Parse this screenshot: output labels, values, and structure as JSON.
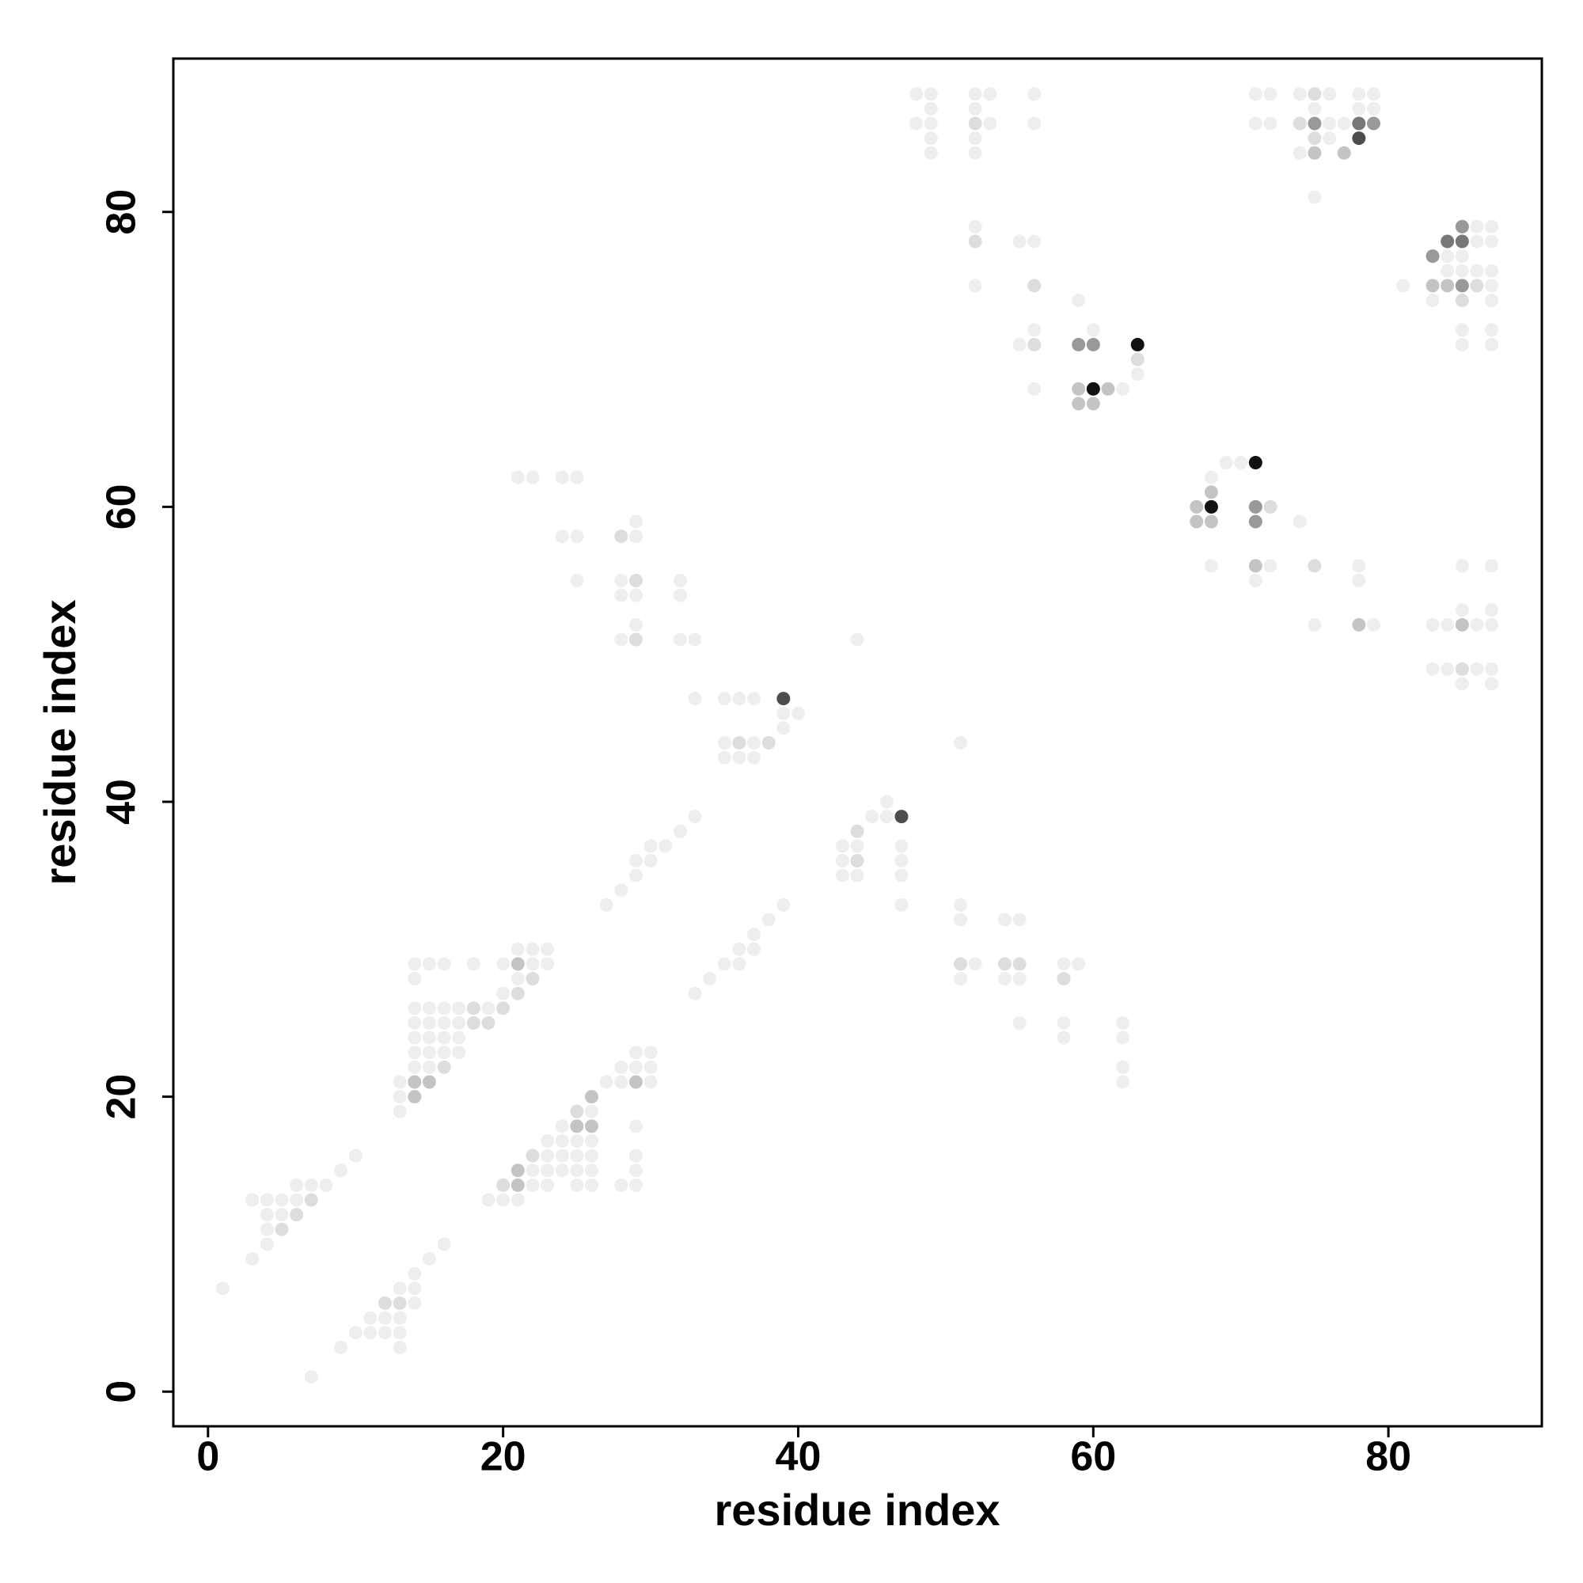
{
  "chart_data": {
    "type": "scatter",
    "x_label": "residue index",
    "y_label": "residue index",
    "xlim": [
      -2.35,
      90.4
    ],
    "ylim": [
      -2.35,
      90.4
    ],
    "xticks": [
      0,
      20,
      40,
      60,
      80
    ],
    "yticks": [
      0,
      20,
      40,
      60,
      80
    ],
    "x": [
      1,
      7,
      3,
      3,
      4,
      4,
      4,
      4,
      5,
      5,
      5,
      6,
      6,
      6,
      7,
      7,
      8,
      9,
      10,
      9,
      10,
      11,
      11,
      12,
      12,
      12,
      13,
      13,
      13,
      13,
      13,
      14,
      14,
      14,
      15,
      16,
      13,
      13,
      13,
      14,
      14,
      14,
      14,
      14,
      14,
      14,
      14,
      14,
      15,
      15,
      15,
      15,
      15,
      15,
      15,
      16,
      16,
      16,
      16,
      16,
      16,
      17,
      17,
      17,
      17,
      18,
      18,
      18,
      19,
      19,
      20,
      20,
      20,
      21,
      21,
      21,
      21,
      22,
      22,
      22,
      23,
      23,
      19,
      20,
      20,
      21,
      21,
      21,
      22,
      22,
      22,
      23,
      23,
      23,
      23,
      24,
      24,
      24,
      24,
      25,
      25,
      25,
      25,
      25,
      25,
      26,
      26,
      26,
      26,
      26,
      26,
      26,
      27,
      28,
      28,
      28,
      29,
      29,
      29,
      29,
      29,
      29,
      29,
      30,
      30,
      30,
      27,
      28,
      29,
      29,
      30,
      30,
      31,
      32,
      33,
      33,
      34,
      35,
      36,
      36,
      37,
      37,
      38,
      39,
      21,
      22,
      24,
      25,
      24,
      25,
      25,
      28,
      29,
      29,
      28,
      29,
      28,
      29,
      29,
      28,
      29,
      32,
      32,
      32,
      33,
      33,
      35,
      36,
      37,
      39,
      35,
      36,
      37,
      38,
      35,
      36,
      37,
      39,
      39,
      40,
      43,
      43,
      43,
      44,
      44,
      44,
      44,
      45,
      46,
      46,
      47,
      47,
      47,
      47,
      47,
      44,
      51,
      51,
      51,
      51,
      51,
      52,
      54,
      55,
      54,
      55,
      54,
      55,
      55,
      58,
      59,
      58,
      58,
      58,
      62,
      62,
      62,
      62,
      48,
      49,
      49,
      48,
      49,
      49,
      49,
      52,
      53,
      52,
      52,
      53,
      52,
      52,
      56,
      56,
      52,
      52,
      52,
      55,
      56,
      56,
      56,
      55,
      56,
      56,
      59,
      59,
      60,
      60,
      59,
      60,
      61,
      62,
      59,
      60,
      63,
      63,
      63,
      67,
      68,
      67,
      68,
      68,
      68,
      69,
      70,
      71,
      71,
      72,
      71,
      68,
      71,
      72,
      71,
      74,
      75,
      75,
      78,
      78,
      78,
      79,
      71,
      72,
      71,
      72,
      74,
      75,
      76,
      75,
      74,
      75,
      76,
      77,
      75,
      76,
      74,
      75,
      75,
      77,
      78,
      79,
      78,
      78,
      79,
      78,
      79,
      81,
      83,
      84,
      85,
      85,
      86,
      87,
      85,
      84,
      86,
      87,
      84,
      85,
      86,
      87,
      83,
      84,
      85,
      86,
      87,
      83,
      85,
      87,
      85,
      87,
      85,
      87,
      85,
      87,
      85,
      87,
      83,
      84,
      85,
      86,
      87,
      83,
      84,
      85,
      86,
      87,
      85,
      87
    ],
    "values": [
      7,
      1,
      9,
      13,
      10,
      11,
      12,
      13,
      11,
      12,
      13,
      12,
      13,
      14,
      13,
      14,
      14,
      15,
      16,
      3,
      4,
      4,
      5,
      4,
      5,
      6,
      3,
      4,
      5,
      6,
      7,
      6,
      7,
      8,
      9,
      10,
      19,
      20,
      21,
      20,
      21,
      22,
      23,
      24,
      25,
      26,
      28,
      29,
      21,
      22,
      23,
      24,
      25,
      26,
      29,
      22,
      23,
      24,
      25,
      26,
      29,
      23,
      24,
      25,
      26,
      25,
      26,
      29,
      25,
      26,
      26,
      27,
      29,
      27,
      28,
      29,
      30,
      28,
      29,
      30,
      29,
      30,
      13,
      13,
      14,
      13,
      14,
      15,
      14,
      15,
      16,
      14,
      15,
      16,
      17,
      15,
      16,
      17,
      18,
      14,
      15,
      16,
      17,
      18,
      19,
      14,
      15,
      16,
      17,
      18,
      19,
      20,
      21,
      14,
      21,
      22,
      14,
      15,
      16,
      18,
      21,
      22,
      23,
      21,
      22,
      23,
      33,
      34,
      35,
      36,
      36,
      37,
      37,
      38,
      39,
      27,
      28,
      29,
      29,
      30,
      30,
      31,
      32,
      33,
      62,
      62,
      62,
      62,
      58,
      58,
      55,
      58,
      58,
      59,
      55,
      55,
      54,
      54,
      52,
      51,
      51,
      55,
      54,
      51,
      51,
      47,
      47,
      47,
      47,
      47,
      44,
      44,
      44,
      44,
      43,
      43,
      43,
      45,
      46,
      46,
      37,
      36,
      35,
      38,
      37,
      36,
      35,
      39,
      39,
      40,
      39,
      37,
      36,
      35,
      33,
      51,
      44,
      33,
      32,
      29,
      28,
      29,
      32,
      32,
      29,
      29,
      28,
      28,
      25,
      29,
      29,
      28,
      25,
      24,
      25,
      24,
      22,
      21,
      88,
      88,
      87,
      86,
      86,
      85,
      84,
      88,
      88,
      87,
      86,
      86,
      85,
      84,
      88,
      86,
      79,
      78,
      75,
      78,
      78,
      75,
      72,
      71,
      71,
      68,
      74,
      71,
      71,
      72,
      68,
      68,
      68,
      68,
      67,
      67,
      71,
      70,
      69,
      60,
      60,
      59,
      59,
      61,
      62,
      63,
      63,
      63,
      60,
      60,
      59,
      56,
      56,
      56,
      55,
      59,
      56,
      52,
      56,
      55,
      52,
      52,
      88,
      88,
      86,
      86,
      88,
      88,
      88,
      87,
      86,
      86,
      86,
      86,
      85,
      85,
      84,
      84,
      81,
      84,
      86,
      86,
      85,
      88,
      88,
      87,
      87,
      75,
      77,
      78,
      78,
      79,
      79,
      79,
      77,
      77,
      78,
      78,
      76,
      76,
      76,
      76,
      75,
      75,
      75,
      75,
      75,
      74,
      74,
      74,
      72,
      72,
      71,
      71,
      56,
      56,
      53,
      53,
      52,
      52,
      52,
      52,
      52,
      49,
      49,
      49,
      49,
      49,
      48,
      48
    ],
    "colors": [
      "#eee",
      "#eee",
      "#eee",
      "#eee",
      "#eee",
      "#eee",
      "#eee",
      "#eee",
      "#ddd",
      "#eee",
      "#eee",
      "#ddd",
      "#eee",
      "#eee",
      "#ddd",
      "#eee",
      "#eee",
      "#eee",
      "#eee",
      "#eee",
      "#eee",
      "#eee",
      "#eee",
      "#eee",
      "#eee",
      "#ddd",
      "#eee",
      "#eee",
      "#eee",
      "#ddd",
      "#eee",
      "#eee",
      "#eee",
      "#eee",
      "#eee",
      "#eee",
      "#eee",
      "#eee",
      "#eee",
      "#c4c4c4",
      "#c4c4c4",
      "#eee",
      "#eee",
      "#eee",
      "#eee",
      "#eee",
      "#eee",
      "#eee",
      "#c4c4c4",
      "#eee",
      "#eee",
      "#eee",
      "#eee",
      "#eee",
      "#eee",
      "#ddd",
      "#eee",
      "#eee",
      "#eee",
      "#eee",
      "#eee",
      "#eee",
      "#eee",
      "#eee",
      "#eee",
      "#ddd",
      "#ddd",
      "#eee",
      "#ddd",
      "#eee",
      "#ddd",
      "#eee",
      "#eee",
      "#ddd",
      "#eee",
      "#c4c4c4",
      "#eee",
      "#ddd",
      "#eee",
      "#eee",
      "#eee",
      "#eee",
      "#eee",
      "#eee",
      "#ddd",
      "#eee",
      "#c4c4c4",
      "#c4c4c4",
      "#eee",
      "#eee",
      "#ddd",
      "#eee",
      "#eee",
      "#eee",
      "#eee",
      "#eee",
      "#eee",
      "#eee",
      "#eee",
      "#eee",
      "#eee",
      "#eee",
      "#eee",
      "#c4c4c4",
      "#ddd",
      "#eee",
      "#eee",
      "#eee",
      "#eee",
      "#c4c4c4",
      "#eee",
      "#c4c4c4",
      "#eee",
      "#eee",
      "#eee",
      "#eee",
      "#eee",
      "#eee",
      "#eee",
      "#eee",
      "#c4c4c4",
      "#eee",
      "#eee",
      "#eee",
      "#eee",
      "#eee",
      "#eee",
      "#eee",
      "#eee",
      "#eee",
      "#eee",
      "#eee",
      "#eee",
      "#eee",
      "#eee",
      "#eee",
      "#eee",
      "#eee",
      "#eee",
      "#eee",
      "#eee",
      "#eee",
      "#eee",
      "#eee",
      "#eee",
      "#eee",
      "#eee",
      "#eee",
      "#eee",
      "#eee",
      "#eee",
      "#ddd",
      "#eee",
      "#eee",
      "#eee",
      "#ddd",
      "#eee",
      "#eee",
      "#eee",
      "#eee",
      "#ddd",
      "#eee",
      "#eee",
      "#eee",
      "#eee",
      "#eee",
      "#eee",
      "#eee",
      "#eee",
      "#4d4d4d",
      "#eee",
      "#ddd",
      "#eee",
      "#ddd",
      "#eee",
      "#eee",
      "#eee",
      "#eee",
      "#eee",
      "#eee",
      "#eee",
      "#eee",
      "#eee",
      "#ddd",
      "#eee",
      "#ddd",
      "#eee",
      "#eee",
      "#eee",
      "#eee",
      "#4d4d4d",
      "#eee",
      "#eee",
      "#eee",
      "#eee",
      "#eee",
      "#eee",
      "#eee",
      "#eee",
      "#ddd",
      "#eee",
      "#eee",
      "#eee",
      "#eee",
      "#ddd",
      "#ddd",
      "#eee",
      "#eee",
      "#eee",
      "#eee",
      "#eee",
      "#ddd",
      "#eee",
      "#eee",
      "#eee",
      "#eee",
      "#eee",
      "#eee",
      "#eee",
      "#eee",
      "#eee",
      "#eee",
      "#eee",
      "#eee",
      "#eee",
      "#eee",
      "#eee",
      "#eee",
      "#ddd",
      "#eee",
      "#eee",
      "#eee",
      "#eee",
      "#eee",
      "#eee",
      "#ddd",
      "#eee",
      "#eee",
      "#eee",
      "#ddd",
      "#eee",
      "#eee",
      "#ddd",
      "#eee",
      "#eee",
      "#999",
      "#999",
      "#eee",
      "#c4c4c4",
      "#111",
      "#c4c4c4",
      "#eee",
      "#c4c4c4",
      "#c4c4c4",
      "#111",
      "#ddd",
      "#eee",
      "#c4c4c4",
      "#111",
      "#c4c4c4",
      "#c4c4c4",
      "#c4c4c4",
      "#eee",
      "#eee",
      "#eee",
      "#111",
      "#999",
      "#ddd",
      "#999",
      "#eee",
      "#c4c4c4",
      "#eee",
      "#eee",
      "#eee",
      "#ddd",
      "#eee",
      "#eee",
      "#eee",
      "#c4c4c4",
      "#eee",
      "#eee",
      "#eee",
      "#eee",
      "#eee",
      "#eee",
      "#ddd",
      "#eee",
      "#eee",
      "#ddd",
      "#999",
      "#eee",
      "#eee",
      "#ddd",
      "#eee",
      "#eee",
      "#c4c4c4",
      "#eee",
      "#c4c4c4",
      "#777",
      "#999",
      "#4d4d4d",
      "#eee",
      "#eee",
      "#eee",
      "#eee",
      "#eee",
      "#999",
      "#777",
      "#777",
      "#999",
      "#eee",
      "#eee",
      "#eee",
      "#eee",
      "#eee",
      "#eee",
      "#eee",
      "#eee",
      "#eee",
      "#eee",
      "#c4c4c4",
      "#c4c4c4",
      "#999",
      "#ddd",
      "#eee",
      "#eee",
      "#ddd",
      "#eee",
      "#eee",
      "#eee",
      "#eee",
      "#eee",
      "#eee",
      "#eee",
      "#eee",
      "#eee",
      "#eee",
      "#eee",
      "#c4c4c4",
      "#eee",
      "#eee",
      "#eee",
      "#eee",
      "#ddd",
      "#eee",
      "#eee",
      "#eee",
      "#eee"
    ]
  }
}
